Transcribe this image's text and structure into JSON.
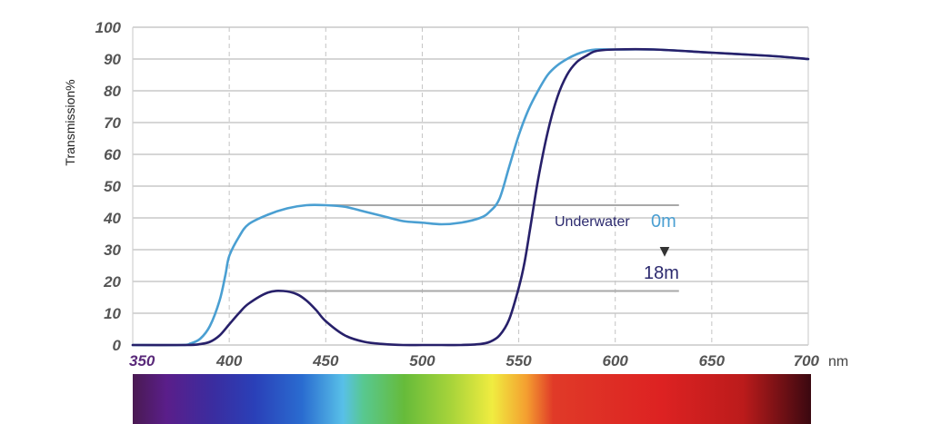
{
  "chart_data": {
    "type": "line",
    "ylabel": "Transmission%",
    "x_unit": "nm",
    "xlim": [
      350,
      700
    ],
    "ylim": [
      0,
      100
    ],
    "x_ticks": [
      "350",
      "400",
      "450",
      "500",
      "550",
      "600",
      "650",
      "700"
    ],
    "y_ticks": [
      "0",
      "10",
      "20",
      "30",
      "40",
      "50",
      "60",
      "70",
      "80",
      "90",
      "100"
    ],
    "grid": {
      "horizontal": true,
      "vertical": "dashed"
    },
    "series": [
      {
        "name": "0m",
        "color": "#4a9fd2",
        "x": [
          350,
          375,
          380,
          385,
          390,
          395,
          398,
          400,
          405,
          410,
          420,
          430,
          440,
          450,
          460,
          470,
          480,
          490,
          500,
          510,
          520,
          530,
          535,
          540,
          545,
          550,
          555,
          560,
          565,
          570,
          575,
          580,
          585,
          590,
          600,
          620,
          650,
          680,
          700
        ],
        "y": [
          0,
          0,
          0.5,
          2,
          6,
          14,
          22,
          28,
          34,
          38,
          41,
          43,
          44,
          44,
          43.5,
          42,
          40.5,
          39,
          38.5,
          38,
          38.5,
          40,
          42,
          46,
          56,
          66,
          74,
          80,
          85,
          88,
          90,
          91.5,
          92.5,
          93,
          93,
          93,
          92,
          91,
          90
        ]
      },
      {
        "name": "18m",
        "color": "#27206a",
        "x": [
          350,
          378,
          385,
          390,
          395,
          400,
          405,
          410,
          420,
          428,
          435,
          440,
          445,
          450,
          460,
          470,
          480,
          490,
          500,
          510,
          520,
          530,
          535,
          540,
          545,
          550,
          553,
          556,
          560,
          565,
          570,
          575,
          580,
          585,
          590,
          600,
          620,
          650,
          680,
          700
        ],
        "y": [
          0,
          0,
          0.3,
          1,
          3,
          6.5,
          10,
          13,
          16.5,
          17,
          16,
          14,
          11,
          7.5,
          3,
          1,
          0.3,
          0,
          0,
          0,
          0,
          0.3,
          1,
          3,
          8,
          18,
          26,
          37,
          52,
          67,
          78,
          85,
          89,
          91,
          92.5,
          93,
          93,
          92,
          91,
          90
        ]
      }
    ],
    "reference_lines": [
      {
        "value": 44,
        "x_from": 450,
        "x_to": 633
      },
      {
        "value": 17,
        "x_from": 428,
        "x_to": 633
      }
    ],
    "annotations": {
      "underwater_label": "Underwater",
      "depth_start": "0m",
      "depth_end": "18m",
      "arrow": "▼"
    },
    "spectrum_colors": [
      "#4a1a52",
      "#5a1e8a",
      "#3a2da0",
      "#2a40b8",
      "#2a6cd0",
      "#58c0e8",
      "#58c890",
      "#66bb3a",
      "#a8d43a",
      "#f0ec40",
      "#f4a030",
      "#e03a28",
      "#dd2222",
      "#bb1b1b",
      "#3a0810"
    ]
  }
}
